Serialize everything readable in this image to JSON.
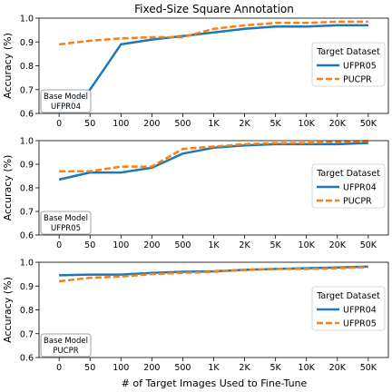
{
  "figure": {
    "title": "Fixed-Size Square Annotation",
    "xlabel": "# of Target Images Used to Fine-Tune"
  },
  "chart_data": [
    {
      "type": "line",
      "categories": [
        "0",
        "50",
        "100",
        "200",
        "500",
        "1K",
        "2K",
        "5K",
        "10K",
        "20K",
        "50K"
      ],
      "ylabel": "Accuracy (%)",
      "ylim": [
        0.6,
        1.0
      ],
      "yticks": [
        "1.0",
        "0.9",
        "0.8",
        "0.7",
        "0.6"
      ],
      "base_model_label": "Base Model",
      "base_model": "UFPR04",
      "legend_title": "Target Dataset",
      "legend_position": "center-right",
      "series": [
        {
          "name": "UFPR05",
          "color": "#1f77b4",
          "style": "solid",
          "values": [
            0.61,
            0.7,
            0.89,
            0.91,
            0.925,
            0.94,
            0.955,
            0.965,
            0.965,
            0.97,
            0.97
          ]
        },
        {
          "name": "PUCPR",
          "color": "#ff7f0e",
          "style": "dashed",
          "values": [
            0.89,
            0.905,
            0.915,
            0.92,
            0.92,
            0.955,
            0.97,
            0.98,
            0.98,
            0.985,
            0.985
          ]
        }
      ]
    },
    {
      "type": "line",
      "categories": [
        "0",
        "50",
        "100",
        "200",
        "500",
        "1K",
        "2K",
        "5K",
        "10K",
        "20K",
        "50K"
      ],
      "ylabel": "Accuracy (%)",
      "ylim": [
        0.6,
        1.0
      ],
      "yticks": [
        "1.0",
        "0.9",
        "0.8",
        "0.7",
        "0.6"
      ],
      "base_model_label": "Base Model",
      "base_model": "UFPR05",
      "legend_title": "Target Dataset",
      "legend_position": "center-right",
      "series": [
        {
          "name": "UFPR04",
          "color": "#1f77b4",
          "style": "solid",
          "values": [
            0.835,
            0.865,
            0.865,
            0.885,
            0.945,
            0.97,
            0.98,
            0.985,
            0.985,
            0.985,
            0.99
          ]
        },
        {
          "name": "PUCPR",
          "color": "#ff7f0e",
          "style": "dashed",
          "values": [
            0.87,
            0.87,
            0.89,
            0.89,
            0.965,
            0.975,
            0.985,
            0.99,
            0.99,
            0.995,
            0.998
          ]
        }
      ]
    },
    {
      "type": "line",
      "categories": [
        "0",
        "50",
        "100",
        "200",
        "500",
        "1K",
        "2K",
        "5K",
        "10K",
        "20K",
        "50K"
      ],
      "ylabel": "Accuracy (%)",
      "ylim": [
        0.6,
        1.0
      ],
      "yticks": [
        "1.0",
        "0.9",
        "0.8",
        "0.7",
        "0.6"
      ],
      "base_model_label": "Base Model",
      "base_model": "PUCPR",
      "legend_title": "Target Dataset",
      "legend_position": "center-right",
      "series": [
        {
          "name": "UFPR04",
          "color": "#1f77b4",
          "style": "solid",
          "values": [
            0.945,
            0.948,
            0.948,
            0.955,
            0.96,
            0.962,
            0.968,
            0.972,
            0.975,
            0.978,
            0.982
          ]
        },
        {
          "name": "UFPR05",
          "color": "#ff7f0e",
          "style": "dashed",
          "values": [
            0.92,
            0.935,
            0.94,
            0.95,
            0.955,
            0.96,
            0.968,
            0.972,
            0.972,
            0.975,
            0.98
          ]
        }
      ]
    }
  ]
}
